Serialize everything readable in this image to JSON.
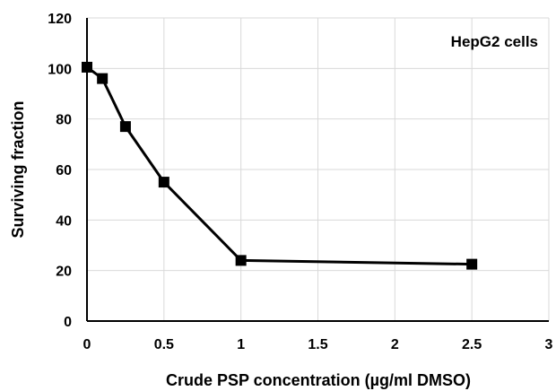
{
  "chart_data": {
    "type": "line",
    "title": "",
    "annotation": "HepG2 cells",
    "xlabel": "Crude PSP concentration (µg/ml DMSO)",
    "ylabel": "Surviving fraction",
    "xlim": [
      0,
      3
    ],
    "ylim": [
      0,
      120
    ],
    "xticks": [
      "0",
      "0.5",
      "1",
      "1.5",
      "2",
      "2.5",
      "3"
    ],
    "yticks": [
      "0",
      "20",
      "40",
      "60",
      "80",
      "100",
      "120"
    ],
    "grid": true,
    "series": [
      {
        "x": [
          0,
          0.1,
          0.25,
          0.5,
          1,
          2.5
        ],
        "y": [
          100.5,
          96,
          77,
          55,
          24,
          22.5
        ],
        "color": "#000000",
        "marker": "square"
      }
    ]
  }
}
